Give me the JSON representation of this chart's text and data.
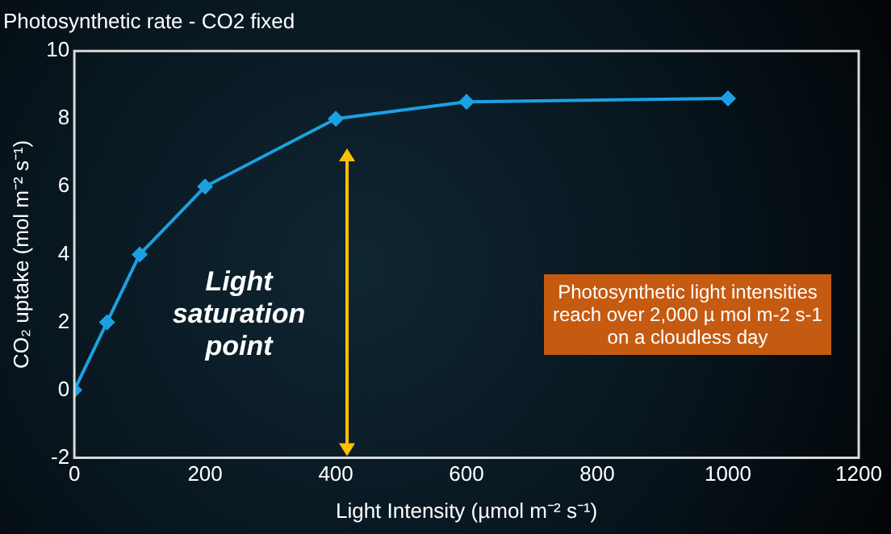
{
  "chart_data": {
    "type": "line",
    "title": "Photosynthetic rate - CO2 fixed",
    "xlabel": "Light Intensity (µmol m⁻² s⁻¹)",
    "ylabel": "CO₂ uptake (mol m⁻² s⁻¹)",
    "x": [
      0,
      50,
      100,
      200,
      400,
      600,
      1000
    ],
    "series": [
      {
        "color": "#1ba1e2",
        "values": [
          0,
          2,
          4,
          6,
          8,
          8.5,
          8.6
        ]
      }
    ],
    "xlim": [
      0,
      1200
    ],
    "xticks": [
      0,
      200,
      400,
      600,
      800,
      1000,
      1200
    ],
    "ylim": [
      -2,
      10
    ],
    "yticks": [
      -2,
      0,
      2,
      4,
      6,
      8,
      10
    ],
    "grid": false,
    "legend": false,
    "marker": "diamond",
    "line_style": "solid",
    "annotations": [
      "Light saturation point",
      "Photosynthetic light intensities reach over 2,000 µ mol m-2 s-1 on a cloudless day"
    ]
  }
}
